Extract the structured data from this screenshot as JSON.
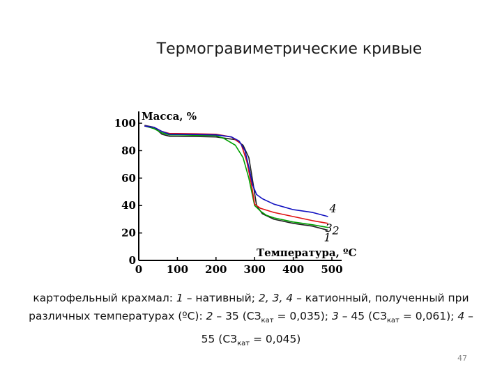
{
  "slide": {
    "title": "Термогравиметрические кривые",
    "page_number": "47",
    "caption": {
      "p1": "картофельный крахмал: ",
      "n1": "1",
      "p2": " – нативный; ",
      "n234": "2, 3, 4",
      "p3": " – катионный, полученный при различных температурах (ºС): ",
      "n2": "2",
      "p4": " – 35 (СЗ",
      "sub1": "кат",
      "p5": " = 0,035); ",
      "n3": "3",
      "p6": " – 45 (СЗ",
      "sub2": "кат",
      "p7": " = 0,061); ",
      "n4": "4",
      "p8": " – 55 (СЗ",
      "sub3": "кат",
      "p9": " = 0,045)"
    }
  },
  "chart_data": {
    "type": "line",
    "ylabel": "Масса, %",
    "xlabel": "Температура, ºС",
    "xlim": [
      0,
      500
    ],
    "ylim": [
      0,
      100
    ],
    "x_ticks": [
      "0",
      "100",
      "200",
      "300",
      "400",
      "500"
    ],
    "y_ticks": [
      "0",
      "20",
      "40",
      "60",
      "80",
      "100"
    ],
    "series": [
      {
        "name": "1",
        "color": "#222222",
        "x": [
          15,
          40,
          60,
          80,
          100,
          150,
          200,
          250,
          270,
          285,
          295,
          305,
          320,
          350,
          400,
          450,
          490
        ],
        "y": [
          98.5,
          97,
          92,
          90.5,
          90.5,
          90.3,
          90,
          88,
          84,
          75,
          58,
          40,
          34,
          30,
          27,
          25,
          22
        ]
      },
      {
        "name": "2",
        "color": "#00a000",
        "x": [
          15,
          40,
          60,
          80,
          100,
          150,
          200,
          220,
          250,
          270,
          285,
          300,
          315,
          330,
          350,
          400,
          450,
          490
        ],
        "y": [
          98,
          96,
          93,
          91.5,
          91.5,
          91.2,
          91,
          89,
          84,
          75,
          60,
          40,
          36,
          33,
          31,
          28,
          26,
          24
        ]
      },
      {
        "name": "3",
        "color": "#e01010",
        "x": [
          15,
          40,
          60,
          80,
          100,
          150,
          200,
          240,
          265,
          280,
          292,
          300,
          315,
          350,
          400,
          450,
          490
        ],
        "y": [
          98,
          97,
          94,
          92.5,
          92.5,
          92.3,
          92,
          90,
          85,
          72,
          55,
          41,
          38,
          35,
          32,
          29,
          27
        ]
      },
      {
        "name": "4",
        "color": "#1010c0",
        "x": [
          15,
          40,
          60,
          80,
          100,
          150,
          200,
          240,
          260,
          275,
          285,
          295,
          305,
          320,
          350,
          400,
          450,
          490
        ],
        "y": [
          98,
          97,
          94,
          92,
          92,
          91.8,
          91.5,
          90,
          87,
          80,
          68,
          55,
          48,
          45,
          41,
          37,
          35,
          32
        ]
      }
    ]
  }
}
